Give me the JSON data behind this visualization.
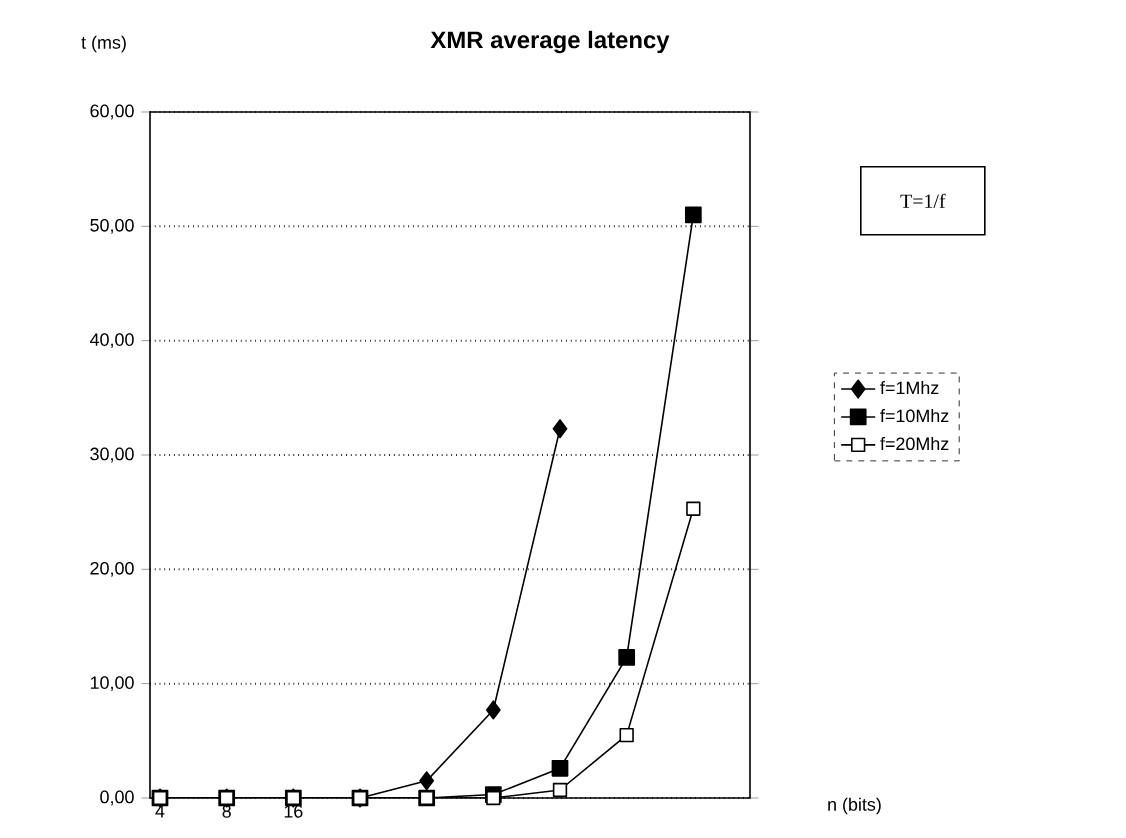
{
  "chart_data": {
    "type": "line",
    "title": "XMR average latency",
    "ylabel": "t (ms)",
    "xlabel": "n (bits)",
    "categories": [
      "4",
      "8",
      "16",
      null,
      null,
      null,
      null,
      null,
      null
    ],
    "series": [
      {
        "name": "f=1Mhz",
        "color": "#000000",
        "marker": "diamond",
        "values": [
          0,
          0,
          0,
          0,
          1.5,
          7.7,
          32.3,
          null,
          null
        ]
      },
      {
        "name": "f=10Mhz",
        "color": "#000000",
        "marker": "square",
        "values": [
          0,
          0,
          0,
          0,
          0,
          0.3,
          2.6,
          12.3,
          51
        ]
      },
      {
        "name": "f=20Mhz",
        "color": "#ffffff",
        "marker": "square",
        "values": [
          0,
          0,
          0,
          0,
          0,
          0,
          0.7,
          5.5,
          25.3
        ]
      }
    ],
    "ylim": [
      0,
      60
    ],
    "yticks": [
      {
        "value": 0,
        "label": "0,00"
      },
      {
        "value": 10,
        "label": "10,00"
      },
      {
        "value": 20,
        "label": "20,00"
      },
      {
        "value": 30,
        "label": "30,00"
      },
      {
        "value": 40,
        "label": "40,00"
      },
      {
        "value": 50,
        "label": "50,00"
      },
      {
        "value": 60,
        "label": "60,00"
      }
    ],
    "grid": "y",
    "legend": "right",
    "line_style": "solid",
    "annotations": [
      "T=1/f"
    ]
  }
}
